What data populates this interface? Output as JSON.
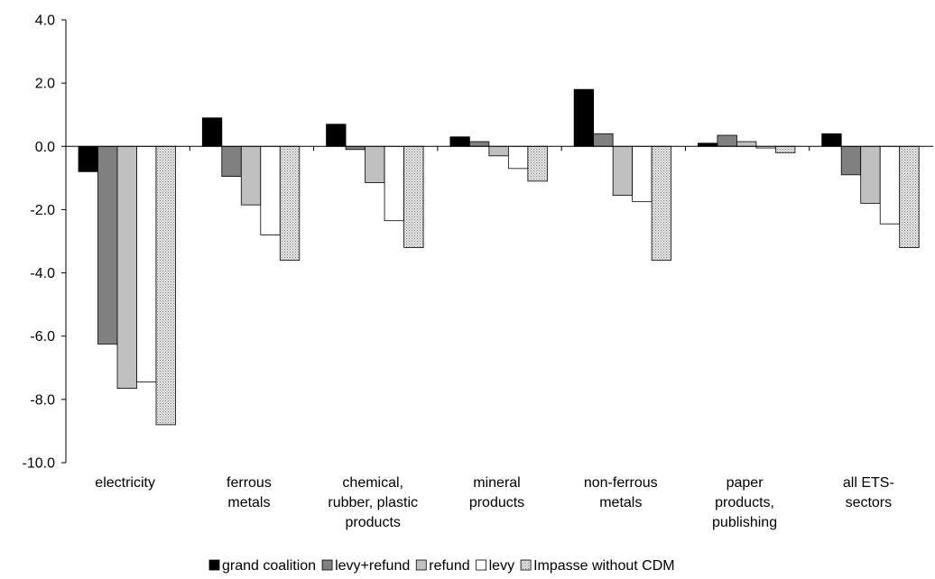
{
  "chart_data": {
    "type": "bar",
    "title": "",
    "xlabel": "",
    "ylabel": "",
    "ylim": [
      -10,
      4
    ],
    "yticks": [
      "4.0",
      "2.0",
      "0.0",
      "-2.0",
      "-4.0",
      "-6.0",
      "-8.0",
      "-10.0"
    ],
    "grid": false,
    "legend_position": "bottom",
    "categories": [
      [
        "electricity"
      ],
      [
        "ferrous",
        "metals"
      ],
      [
        "chemical,",
        "rubber, plastic",
        "products"
      ],
      [
        "mineral",
        "products"
      ],
      [
        "non-ferrous",
        "metals"
      ],
      [
        "paper",
        "products,",
        "publishing"
      ],
      [
        "all ETS-",
        "sectors"
      ]
    ],
    "series": [
      {
        "name": "grand coalition",
        "color": "#000000",
        "pattern": "solid",
        "values": [
          -0.8,
          0.9,
          0.7,
          0.3,
          1.8,
          0.1,
          0.4
        ]
      },
      {
        "name": "levy+refund",
        "color": "#808080",
        "pattern": "solid",
        "values": [
          -6.25,
          -0.95,
          -0.1,
          0.15,
          0.4,
          0.35,
          -0.9
        ]
      },
      {
        "name": "refund",
        "color": "#c0c0c0",
        "pattern": "solid",
        "values": [
          -7.65,
          -1.85,
          -1.15,
          -0.3,
          -1.55,
          0.15,
          -1.8
        ]
      },
      {
        "name": "levy",
        "color": "#ffffff",
        "pattern": "solid",
        "values": [
          -7.45,
          -2.8,
          -2.35,
          -0.7,
          -1.75,
          -0.05,
          -2.45
        ]
      },
      {
        "name": "Impasse without CDM",
        "color": "#d0d0d0",
        "pattern": "dotted",
        "values": [
          -8.8,
          -3.6,
          -3.2,
          -1.1,
          -3.6,
          -0.2,
          -3.2
        ]
      }
    ]
  }
}
